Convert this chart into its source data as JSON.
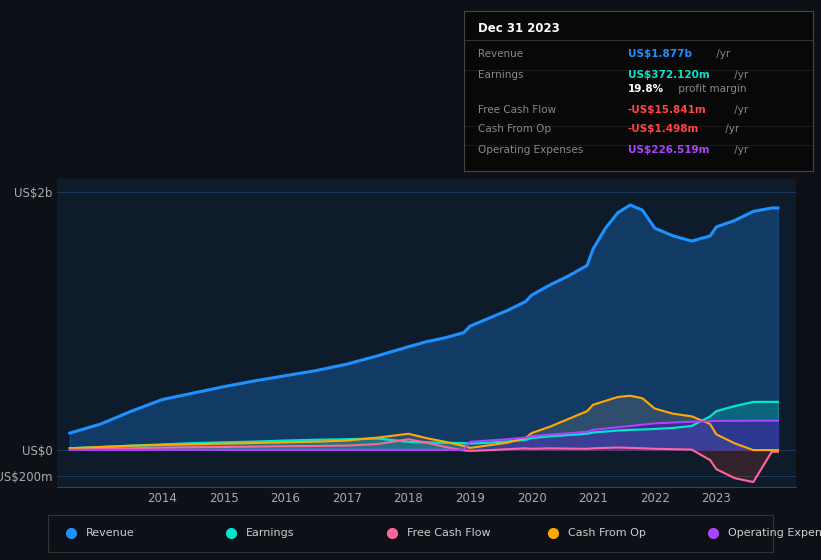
{
  "bg_color": "#0d1117",
  "plot_bg_color": "#0d1b2a",
  "text_color": "#aaaaaa",
  "grid_color": "#1e3a5f",
  "zero_line_color": "#334466",
  "xlim": [
    2012.3,
    2024.3
  ],
  "ylim": [
    -290,
    2100
  ],
  "ytick_labels": [
    "US$2b",
    "US$0",
    "-US$200m"
  ],
  "ytick_values": [
    2000,
    0,
    -200
  ],
  "xtick_years": [
    2014,
    2015,
    2016,
    2017,
    2018,
    2019,
    2020,
    2021,
    2022,
    2023
  ],
  "series_years": [
    2012.5,
    2013.0,
    2013.5,
    2014.0,
    2014.5,
    2015.0,
    2015.5,
    2016.0,
    2016.5,
    2017.0,
    2017.5,
    2018.0,
    2018.3,
    2018.6,
    2018.9,
    2019.0,
    2019.3,
    2019.6,
    2019.9,
    2020.0,
    2020.3,
    2020.6,
    2020.9,
    2021.0,
    2021.2,
    2021.4,
    2021.6,
    2021.8,
    2022.0,
    2022.3,
    2022.6,
    2022.9,
    2023.0,
    2023.3,
    2023.6,
    2023.9,
    2024.0
  ],
  "revenue": [
    130,
    200,
    300,
    390,
    440,
    490,
    535,
    575,
    615,
    665,
    730,
    800,
    840,
    870,
    910,
    960,
    1020,
    1080,
    1150,
    1200,
    1280,
    1350,
    1430,
    1560,
    1720,
    1840,
    1900,
    1860,
    1720,
    1660,
    1620,
    1660,
    1730,
    1780,
    1850,
    1877,
    1877
  ],
  "earnings": [
    12,
    22,
    32,
    42,
    52,
    58,
    64,
    72,
    78,
    82,
    88,
    62,
    58,
    55,
    52,
    48,
    55,
    65,
    78,
    92,
    105,
    115,
    125,
    135,
    142,
    150,
    155,
    158,
    162,
    170,
    185,
    260,
    300,
    340,
    372,
    372,
    372
  ],
  "free_cash_flow": [
    5,
    8,
    12,
    17,
    20,
    22,
    25,
    28,
    30,
    33,
    45,
    82,
    55,
    22,
    -5,
    -8,
    -3,
    5,
    12,
    8,
    12,
    10,
    8,
    12,
    15,
    18,
    15,
    12,
    8,
    5,
    2,
    -80,
    -150,
    -220,
    -250,
    -15,
    -15
  ],
  "cash_from_op": [
    12,
    22,
    32,
    38,
    43,
    48,
    53,
    58,
    63,
    72,
    95,
    125,
    90,
    62,
    30,
    15,
    35,
    55,
    90,
    130,
    180,
    240,
    300,
    350,
    380,
    410,
    420,
    400,
    320,
    280,
    260,
    200,
    120,
    50,
    -2,
    -2,
    -2
  ],
  "op_expenses": [
    0,
    0,
    0,
    0,
    0,
    0,
    0,
    0,
    0,
    0,
    0,
    0,
    0,
    0,
    0,
    62,
    72,
    82,
    95,
    105,
    118,
    128,
    140,
    155,
    165,
    175,
    185,
    195,
    205,
    212,
    218,
    222,
    224,
    225,
    226,
    226,
    226
  ],
  "colors": {
    "revenue": "#1e90ff",
    "earnings": "#00e5cc",
    "free_cash_flow": "#ff6699",
    "cash_from_op": "#ffaa00",
    "op_expenses": "#aa44ff"
  },
  "tooltip": {
    "date": "Dec 31 2023",
    "rows": [
      {
        "label": "Revenue",
        "value": "US$1.877b",
        "suffix": " /yr",
        "color": "#1e90ff"
      },
      {
        "label": "Earnings",
        "value": "US$372.120m",
        "suffix": " /yr",
        "color": "#00e5cc"
      },
      {
        "label": "",
        "value": "19.8%",
        "suffix": " profit margin",
        "color": "#ffffff"
      },
      {
        "label": "Free Cash Flow",
        "value": "-US$15.841m",
        "suffix": " /yr",
        "color": "#ff4444"
      },
      {
        "label": "Cash From Op",
        "value": "-US$1.498m",
        "suffix": " /yr",
        "color": "#ff4444"
      },
      {
        "label": "Operating Expenses",
        "value": "US$226.519m",
        "suffix": " /yr",
        "color": "#aa44ff"
      }
    ]
  },
  "legend": [
    {
      "label": "Revenue",
      "color": "#1e90ff"
    },
    {
      "label": "Earnings",
      "color": "#00e5cc"
    },
    {
      "label": "Free Cash Flow",
      "color": "#ff6699"
    },
    {
      "label": "Cash From Op",
      "color": "#ffaa00"
    },
    {
      "label": "Operating Expenses",
      "color": "#aa44ff"
    }
  ]
}
